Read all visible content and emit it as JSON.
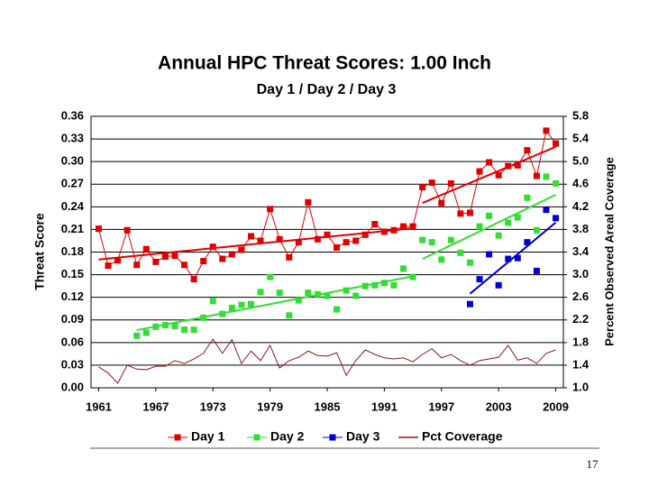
{
  "chart_data": {
    "type": "line",
    "title": "Annual HPC Threat Scores:  1.00 Inch",
    "subtitle": "Day 1 / Day 2 / Day 3",
    "y_label": "Threat Score",
    "y2_label": "Percent Observed Areal Coverage",
    "page_number": "17",
    "xlim": [
      1960.2,
      2009.8
    ],
    "xticks": [
      1961,
      1967,
      1973,
      1979,
      1985,
      1991,
      1997,
      2003,
      2009
    ],
    "ylim": [
      0,
      0.36
    ],
    "yticks": [
      {
        "value": 0,
        "label": "0.00"
      },
      0.03,
      0.06,
      0.09,
      0.12,
      0.15,
      0.18,
      0.21,
      0.24,
      0.27,
      {
        "value": 0.3,
        "label": "0.30"
      },
      0.33,
      0.36
    ],
    "y2lim": [
      1.0,
      5.8
    ],
    "y2ticks": [
      {
        "value": 1.0,
        "label": "1.0"
      },
      1.4,
      1.8,
      2.2,
      2.6,
      {
        "value": 3.0,
        "label": "3.0"
      },
      3.4,
      3.8,
      4.2,
      4.6,
      {
        "value": 5.0,
        "label": "5.0"
      },
      5.4,
      5.8
    ],
    "grid": true,
    "trend_break": 1995,
    "x": [
      1961,
      1962,
      1963,
      1964,
      1965,
      1966,
      1967,
      1968,
      1969,
      1970,
      1971,
      1972,
      1973,
      1974,
      1975,
      1976,
      1977,
      1978,
      1979,
      1980,
      1981,
      1982,
      1983,
      1984,
      1985,
      1986,
      1987,
      1988,
      1989,
      1990,
      1991,
      1992,
      1993,
      1994,
      1995,
      1996,
      1997,
      1998,
      1999,
      2000,
      2001,
      2002,
      2003,
      2004,
      2005,
      2006,
      2007,
      2008,
      2009
    ],
    "series": [
      {
        "name": "Day 1",
        "color": "#e00000",
        "line": true,
        "marker": true,
        "trend": true,
        "values": [
          0.211,
          0.162,
          0.169,
          0.209,
          0.163,
          0.184,
          0.167,
          0.174,
          0.175,
          0.163,
          0.144,
          0.168,
          0.187,
          0.171,
          0.177,
          0.183,
          0.201,
          0.195,
          0.237,
          0.197,
          0.173,
          0.193,
          0.246,
          0.197,
          0.203,
          0.186,
          0.193,
          0.195,
          0.203,
          0.217,
          0.207,
          0.209,
          0.214,
          0.214,
          0.266,
          0.272,
          0.245,
          0.271,
          0.231,
          0.232,
          0.287,
          0.299,
          0.282,
          0.294,
          0.295,
          0.315,
          0.281,
          0.341,
          0.324
        ]
      },
      {
        "name": "Day 2",
        "color": "#33dd33",
        "line": false,
        "marker": true,
        "trend": true,
        "values": [
          null,
          null,
          null,
          null,
          0.069,
          0.073,
          0.081,
          0.083,
          0.082,
          0.077,
          0.077,
          0.093,
          0.115,
          0.098,
          0.106,
          0.11,
          0.111,
          0.127,
          0.147,
          0.126,
          0.096,
          0.116,
          0.126,
          0.124,
          0.122,
          0.104,
          0.129,
          0.122,
          0.135,
          0.136,
          0.139,
          0.136,
          0.158,
          0.147,
          0.196,
          0.193,
          0.17,
          0.196,
          0.179,
          0.166,
          0.214,
          0.228,
          0.202,
          0.219,
          0.226,
          0.252,
          0.209,
          0.28,
          0.271
        ]
      },
      {
        "name": "Day 3",
        "color": "#0000cc",
        "line": false,
        "marker": true,
        "trend": true,
        "values": [
          null,
          null,
          null,
          null,
          null,
          null,
          null,
          null,
          null,
          null,
          null,
          null,
          null,
          null,
          null,
          null,
          null,
          null,
          null,
          null,
          null,
          null,
          null,
          null,
          null,
          null,
          null,
          null,
          null,
          null,
          null,
          null,
          null,
          null,
          null,
          null,
          null,
          null,
          null,
          0.111,
          0.144,
          0.177,
          0.136,
          0.171,
          0.172,
          0.193,
          0.155,
          0.236,
          0.225
        ]
      },
      {
        "name": "Pct Coverage",
        "color": "#8b1a1a",
        "line": true,
        "marker": false,
        "trend": false,
        "axis": "y2",
        "values": [
          1.37,
          1.26,
          1.08,
          1.4,
          1.33,
          1.32,
          1.38,
          1.38,
          1.48,
          1.43,
          1.51,
          1.61,
          1.86,
          1.61,
          1.85,
          1.43,
          1.65,
          1.48,
          1.75,
          1.35,
          1.48,
          1.54,
          1.65,
          1.57,
          1.56,
          1.62,
          1.22,
          1.48,
          1.67,
          1.59,
          1.53,
          1.51,
          1.53,
          1.46,
          1.59,
          1.69,
          1.53,
          1.59,
          1.48,
          1.4,
          1.48,
          1.51,
          1.54,
          1.75,
          1.49,
          1.53,
          1.43,
          1.61,
          1.67
        ]
      }
    ]
  }
}
